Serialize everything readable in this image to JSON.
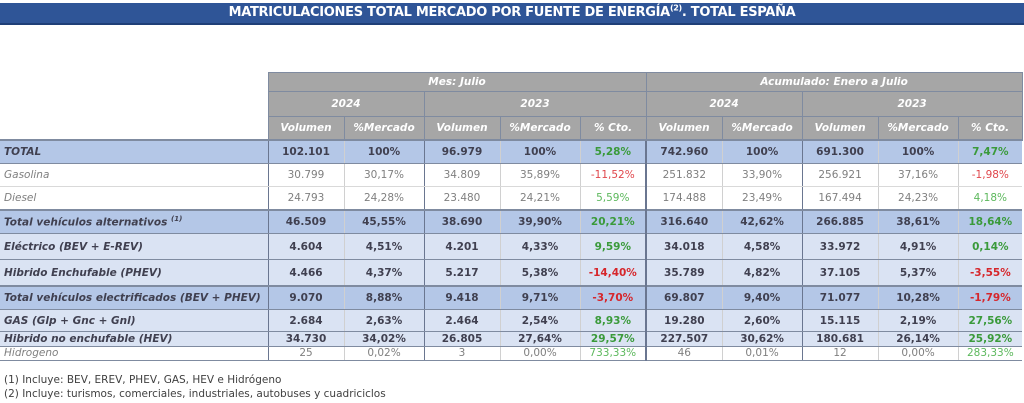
{
  "title": {
    "text_before": "MATRICULACIONES TOTAL MERCADO POR FUENTE DE ENERGÍA",
    "superscript": "(2)",
    "text_after": ". TOTAL ESPAÑA"
  },
  "header": {
    "group1": "Mes: Julio",
    "group2": "Acumulado: Enero a Julio",
    "years": [
      "2024",
      "2023",
      "2024",
      "2023"
    ],
    "columns": [
      "Volumen",
      "%Mercado",
      "Volumen",
      "%Mercado",
      "% Cto.",
      "Volumen",
      "%Mercado",
      "Volumen",
      "%Mercado",
      "% Cto."
    ]
  },
  "rows": [
    {
      "label": "TOTAL",
      "sup": "",
      "values": [
        "102.101",
        "100%",
        "96.979",
        "100%",
        "5,28%",
        "742.960",
        "100%",
        "691.300",
        "100%",
        "7,47%"
      ]
    },
    {
      "label": "Gasolina",
      "sup": "",
      "values": [
        "30.799",
        "30,17%",
        "34.809",
        "35,89%",
        "-11,52%",
        "251.832",
        "33,90%",
        "256.921",
        "37,16%",
        "-1,98%"
      ]
    },
    {
      "label": "Diesel",
      "sup": "",
      "values": [
        "24.793",
        "24,28%",
        "23.480",
        "24,21%",
        "5,59%",
        "174.488",
        "23,49%",
        "167.494",
        "24,23%",
        "4,18%"
      ]
    },
    {
      "label": "Total vehículos alternativos ",
      "sup": "(1)",
      "values": [
        "46.509",
        "45,55%",
        "38.690",
        "39,90%",
        "20,21%",
        "316.640",
        "42,62%",
        "266.885",
        "38,61%",
        "18,64%"
      ]
    },
    {
      "label": "Eléctrico (BEV + E-REV)",
      "sup": "",
      "values": [
        "4.604",
        "4,51%",
        "4.201",
        "4,33%",
        "9,59%",
        "34.018",
        "4,58%",
        "33.972",
        "4,91%",
        "0,14%"
      ]
    },
    {
      "label": "Hibrido Enchufable (PHEV)",
      "sup": "",
      "values": [
        "4.466",
        "4,37%",
        "5.217",
        "5,38%",
        "-14,40%",
        "35.789",
        "4,82%",
        "37.105",
        "5,37%",
        "-3,55%"
      ]
    },
    {
      "label": "Total vehículos electrificados (BEV + PHEV)",
      "sup": "",
      "values": [
        "9.070",
        "8,88%",
        "9.418",
        "9,71%",
        "-3,70%",
        "69.807",
        "9,40%",
        "71.077",
        "10,28%",
        "-1,79%"
      ]
    },
    {
      "label": "GAS (Glp + Gnc + Gnl)",
      "sup": "",
      "values": [
        "2.684",
        "2,63%",
        "2.464",
        "2,54%",
        "8,93%",
        "19.280",
        "2,60%",
        "15.115",
        "2,19%",
        "27,56%"
      ]
    },
    {
      "label": "Hibrido no enchufable (HEV)",
      "sup": "",
      "values": [
        "34.730",
        "34,02%",
        "26.805",
        "27,64%",
        "29,57%",
        "227.507",
        "30,62%",
        "180.681",
        "26,14%",
        "25,92%"
      ]
    },
    {
      "label": "Hidrogeno",
      "sup": "",
      "values": [
        "25",
        "0,02%",
        "3",
        "0,00%",
        "733,33%",
        "46",
        "0,01%",
        "12",
        "0,00%",
        "283,33%"
      ]
    }
  ],
  "footnotes": [
    "(1) Incluye: BEV, EREV, PHEV, GAS, HEV e Hidrógeno",
    "(2) Incluye: turismos, comerciales, industriales, autobuses y cuadriciclos"
  ],
  "colors": {
    "title_bg": "#2f5597",
    "header_bg": "#a6a6a6",
    "total_row_bg": "#b4c7e7",
    "sub_row_bg": "#dae3f3",
    "positive": "#3a9a3a",
    "negative": "#d6262b"
  }
}
